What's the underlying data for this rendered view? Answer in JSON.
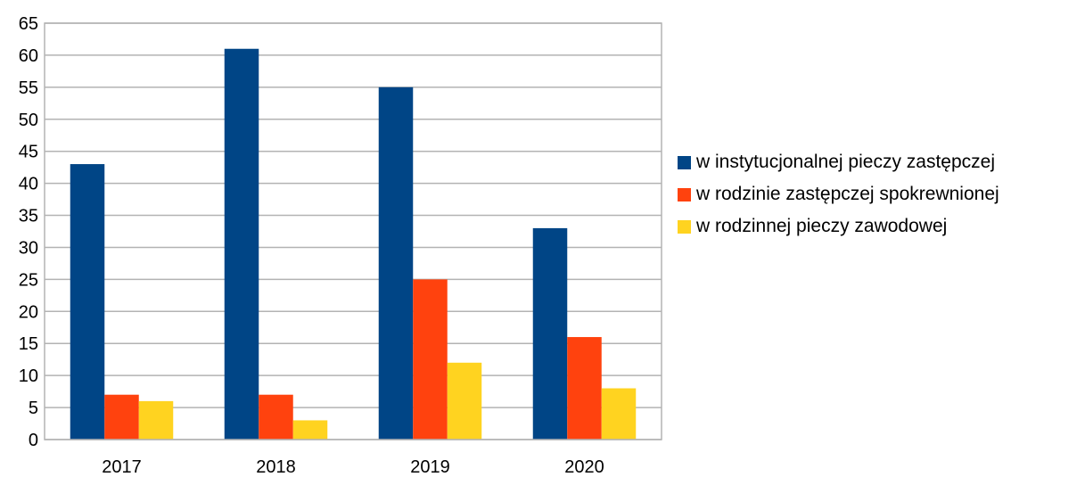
{
  "chart_data": {
    "type": "bar",
    "categories": [
      "2017",
      "2018",
      "2019",
      "2020"
    ],
    "series": [
      {
        "name": "w instytucjonalnej pieczy zastępczej",
        "color": "#004586",
        "values": [
          43,
          61,
          55,
          33
        ]
      },
      {
        "name": "w rodzinie zastępczej spokrewnionej",
        "color": "#ff420e",
        "values": [
          7,
          7,
          25,
          16
        ]
      },
      {
        "name": "w rodzinnej pieczy zawodowej",
        "color": "#ffd320",
        "values": [
          6,
          3,
          12,
          8
        ]
      }
    ],
    "ylim": [
      0,
      65
    ],
    "yticks": [
      0,
      5,
      10,
      15,
      20,
      25,
      30,
      35,
      40,
      45,
      50,
      55,
      60,
      65
    ],
    "grid": true,
    "legend_position": "right"
  }
}
